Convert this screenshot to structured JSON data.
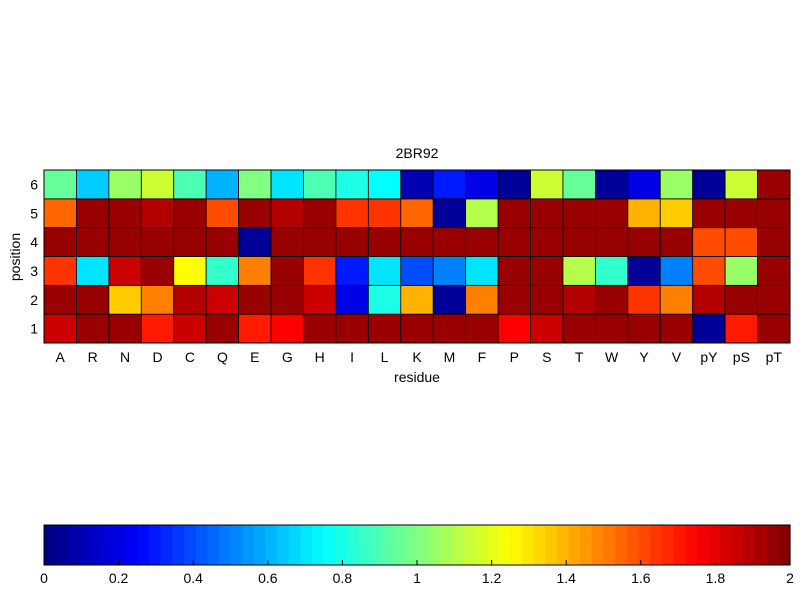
{
  "chart_data": {
    "type": "heatmap",
    "title": "2BR92",
    "xlabel": "residue",
    "ylabel": "position",
    "x_categories": [
      "A",
      "R",
      "N",
      "D",
      "C",
      "Q",
      "E",
      "G",
      "H",
      "I",
      "L",
      "K",
      "M",
      "F",
      "P",
      "S",
      "T",
      "W",
      "Y",
      "V",
      "pY",
      "pS",
      "pT"
    ],
    "y_categories": [
      "1",
      "2",
      "3",
      "4",
      "5",
      "6"
    ],
    "values": [
      [
        1.85,
        1.95,
        1.95,
        1.7,
        1.85,
        1.95,
        1.7,
        1.75,
        1.95,
        1.95,
        1.95,
        1.95,
        1.95,
        1.95,
        1.75,
        1.85,
        1.95,
        1.95,
        1.95,
        1.95,
        0.05,
        1.7,
        1.95
      ],
      [
        1.95,
        1.95,
        1.35,
        1.5,
        1.9,
        1.85,
        1.95,
        1.95,
        1.85,
        0.2,
        0.8,
        1.4,
        0.05,
        1.5,
        1.95,
        1.95,
        1.9,
        1.95,
        1.65,
        1.5,
        1.9,
        1.95,
        1.95
      ],
      [
        1.65,
        0.7,
        1.85,
        1.95,
        1.25,
        0.85,
        1.5,
        1.95,
        1.65,
        0.3,
        0.7,
        0.4,
        0.5,
        0.7,
        1.95,
        1.95,
        1.1,
        0.85,
        0.05,
        0.5,
        1.6,
        1.05,
        1.95
      ],
      [
        1.95,
        1.95,
        1.95,
        1.95,
        1.95,
        1.95,
        0.05,
        1.95,
        1.95,
        1.95,
        1.95,
        1.95,
        1.95,
        1.95,
        1.95,
        1.95,
        1.95,
        1.95,
        1.95,
        1.95,
        1.6,
        1.6,
        1.95
      ],
      [
        1.55,
        1.95,
        1.95,
        1.9,
        1.95,
        1.6,
        1.95,
        1.9,
        1.95,
        1.65,
        1.65,
        1.55,
        0.05,
        1.1,
        1.95,
        1.95,
        1.95,
        1.95,
        1.4,
        1.35,
        1.95,
        1.95,
        1.95
      ],
      [
        0.95,
        0.65,
        1.05,
        1.15,
        0.9,
        0.6,
        1.0,
        0.7,
        0.9,
        0.8,
        0.75,
        0.1,
        0.3,
        0.2,
        0.05,
        1.15,
        0.95,
        0.05,
        0.2,
        1.05,
        0.05,
        1.15,
        1.95
      ]
    ],
    "colormap": "jet",
    "colorbar": {
      "range": [
        0,
        2
      ],
      "ticks": [
        "0",
        "0.2",
        "0.4",
        "0.6",
        "0.8",
        "1",
        "1.2",
        "1.4",
        "1.6",
        "1.8",
        "2"
      ]
    },
    "grid": true
  }
}
